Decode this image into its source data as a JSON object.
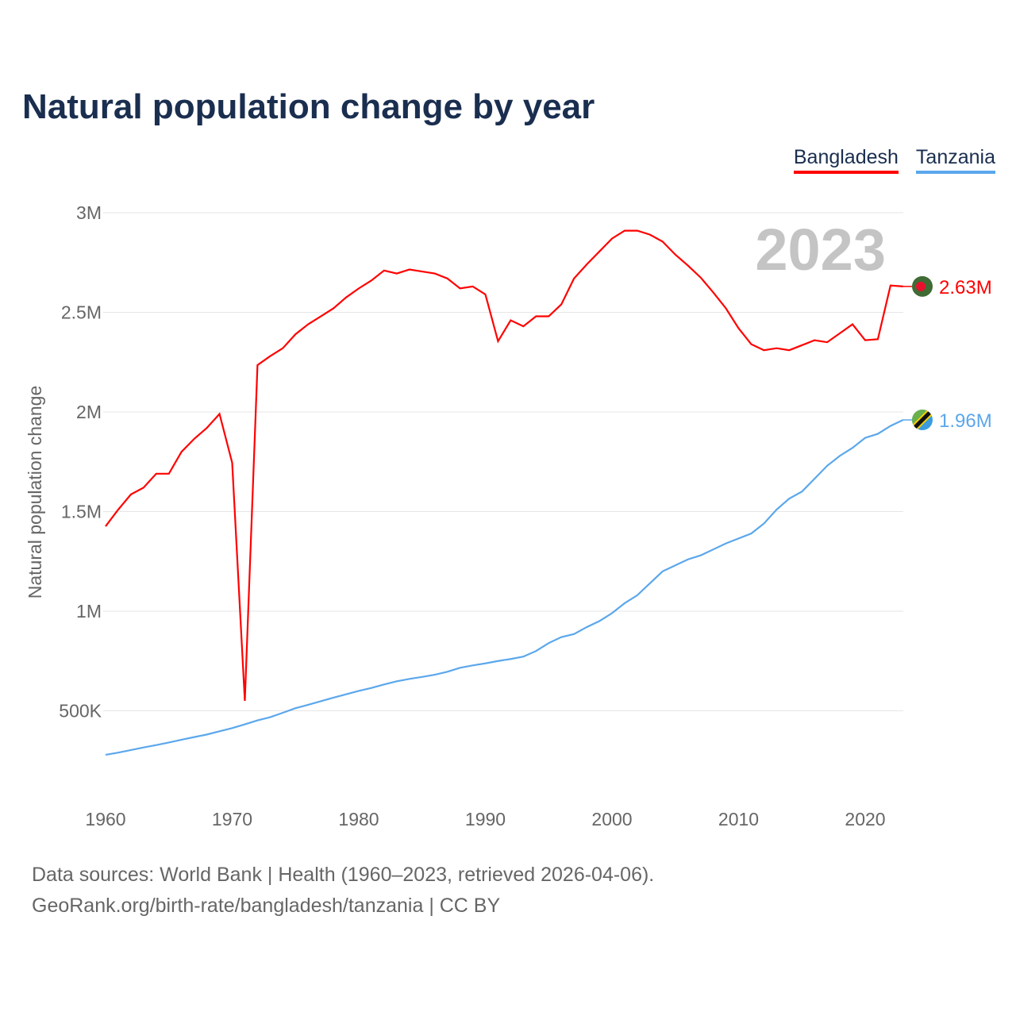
{
  "title": "Natural population change by year",
  "year_label": "2023",
  "footer": {
    "line1": "Data sources: World Bank | Health (1960–2023, retrieved 2026-04-06).",
    "line2": "GeoRank.org/birth-rate/bangladesh/tanzania | CC BY"
  },
  "chart_data": {
    "type": "line",
    "title": "Natural population change by year",
    "xlabel": "",
    "ylabel": "Natural population change",
    "xlim": [
      1960,
      2023
    ],
    "ylim": [
      0,
      3000000
    ],
    "xticks": [
      1960,
      1970,
      1980,
      1990,
      2000,
      2010,
      2020
    ],
    "yticks": [
      {
        "v": 500000,
        "label": "500K"
      },
      {
        "v": 1000000,
        "label": "1M"
      },
      {
        "v": 1500000,
        "label": "1.5M"
      },
      {
        "v": 2000000,
        "label": "2M"
      },
      {
        "v": 2500000,
        "label": "2.5M"
      },
      {
        "v": 3000000,
        "label": "3M"
      }
    ],
    "legend_position": "top-right",
    "x_start": 1960,
    "series": [
      {
        "name": "Bangladesh",
        "color": "#ff0000",
        "end_label": "2.63M",
        "flag": "bangladesh-flag",
        "values": [
          1.426,
          1.51,
          1.586,
          1.62,
          1.69,
          1.69,
          1.8,
          1.865,
          1.92,
          1.99,
          1.745,
          0.55,
          2.235,
          2.28,
          2.32,
          2.39,
          2.44,
          2.48,
          2.52,
          2.575,
          2.62,
          2.66,
          2.71,
          2.695,
          2.715,
          2.705,
          2.695,
          2.67,
          2.62,
          2.63,
          2.59,
          2.355,
          2.46,
          2.43,
          2.48,
          2.48,
          2.54,
          2.67,
          2.74,
          2.805,
          2.87,
          2.91,
          2.91,
          2.89,
          2.855,
          2.79,
          2.735,
          2.675,
          2.6,
          2.52,
          2.42,
          2.34,
          2.31,
          2.32,
          2.31,
          2.335,
          2.36,
          2.35,
          2.395,
          2.44,
          2.36,
          2.365,
          2.635,
          2.63
        ]
      },
      {
        "name": "Tanzania",
        "color": "#5ba7ec",
        "end_label": "1.96M",
        "flag": "tanzania-flag",
        "values": [
          0.279,
          0.29,
          0.303,
          0.316,
          0.328,
          0.341,
          0.355,
          0.368,
          0.381,
          0.397,
          0.413,
          0.432,
          0.452,
          0.468,
          0.49,
          0.513,
          0.53,
          0.548,
          0.566,
          0.583,
          0.6,
          0.615,
          0.632,
          0.648,
          0.66,
          0.67,
          0.681,
          0.696,
          0.716,
          0.728,
          0.738,
          0.75,
          0.76,
          0.772,
          0.8,
          0.84,
          0.87,
          0.885,
          0.92,
          0.95,
          0.99,
          1.04,
          1.08,
          1.14,
          1.2,
          1.23,
          1.26,
          1.28,
          1.31,
          1.34,
          1.365,
          1.39,
          1.44,
          1.51,
          1.565,
          1.6,
          1.665,
          1.73,
          1.78,
          1.82,
          1.87,
          1.89,
          1.93,
          1.96
        ]
      }
    ]
  }
}
